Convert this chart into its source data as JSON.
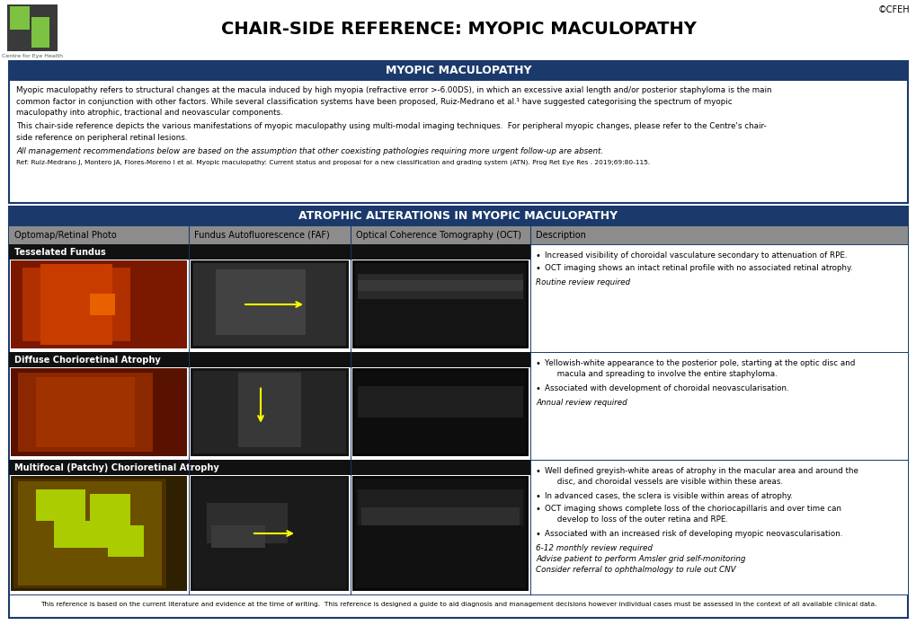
{
  "title": "CHAIR-SIDE REFERENCE: MYOPIC MACULOPATHY",
  "copyright": "©CFEH",
  "org_name": "Centre for Eye Health",
  "dark_blue": "#1B3A6B",
  "header_gray": "#8C8C8C",
  "white": "#FFFFFF",
  "black": "#000000",
  "section1_title": "MYOPIC MACULOPATHY",
  "section1_body1": "Myopic maculopathy refers to structural changes at the macula induced by high myopia (refractive error >-6.00DS), in which an excessive axial length and/or posterior staphyloma is the main\ncommon factor in conjunction with other factors. While several classification systems have been proposed, Ruiz-Medrano et al.¹ have suggested categorising the spectrum of myopic\nmaculopathy into atrophic, tractional and neovascular components.",
  "section1_body2": "This chair-side reference depicts the various manifestations of myopic maculopathy using multi-modal imaging techniques.  For peripheral myopic changes, please refer to the Centre's chair-\nside reference on peripheral retinal lesions.",
  "section1_italic": "All management recommendations below are based on the assumption that other coexisting pathologies requiring more urgent follow-up are absent.",
  "section1_ref": "Ref: Ruiz-Medrano J, Montero JA, Flores-Moreno I et al. Myopic maculopathy: Current status and proposal for a new classification and grading system (ATN). Prog Ret Eye Res . 2019;69:80-115.",
  "section2_title": "ATROPHIC ALTERATIONS IN MYOPIC MACULOPATHY",
  "col_headers": [
    "Optomap/Retinal Photo",
    "Fundus Autofluorescence (FAF)",
    "Optical Coherence Tomography (OCT)",
    "Description"
  ],
  "rows": [
    {
      "label": "Tesselated Fundus",
      "desc_bullets": [
        "Increased visibility of choroidal vasculature secondary to attenuation of RPE.",
        "OCT imaging shows an intact retinal profile with no associated retinal atrophy."
      ],
      "desc_italics": [
        "Routine review required"
      ]
    },
    {
      "label": "Diffuse Chorioretinal Atrophy",
      "desc_bullets": [
        "Yellowish-white appearance to the posterior pole, starting at the optic disc and\n     macula and spreading to involve the entire staphyloma.",
        "Associated with development of choroidal neovascularisation."
      ],
      "desc_italics": [
        "Annual review required"
      ]
    },
    {
      "label": "Multifocal (Patchy) Chorioretinal Atrophy",
      "desc_bullets": [
        "Well defined greyish-white areas of atrophy in the macular area and around the\n     disc, and choroidal vessels are visible within these areas.",
        "In advanced cases, the sclera is visible within areas of atrophy.",
        "OCT imaging shows complete loss of the choriocapillaris and over time can\n     develop to loss of the outer retina and RPE.",
        "Associated with an increased risk of developing myopic neovascularisation."
      ],
      "desc_italics": [
        "6-12 monthly review required",
        "Advise patient to perform Amsler grid self-monitoring",
        "Consider referral to ophthalmology to rule out CNV"
      ]
    }
  ],
  "footer_text": "This reference is based on the current literature and evidence at the time of writing.  This reference is designed a guide to aid diagnosis and management decisions however individual cases must be assessed in the context of all available clinical data."
}
